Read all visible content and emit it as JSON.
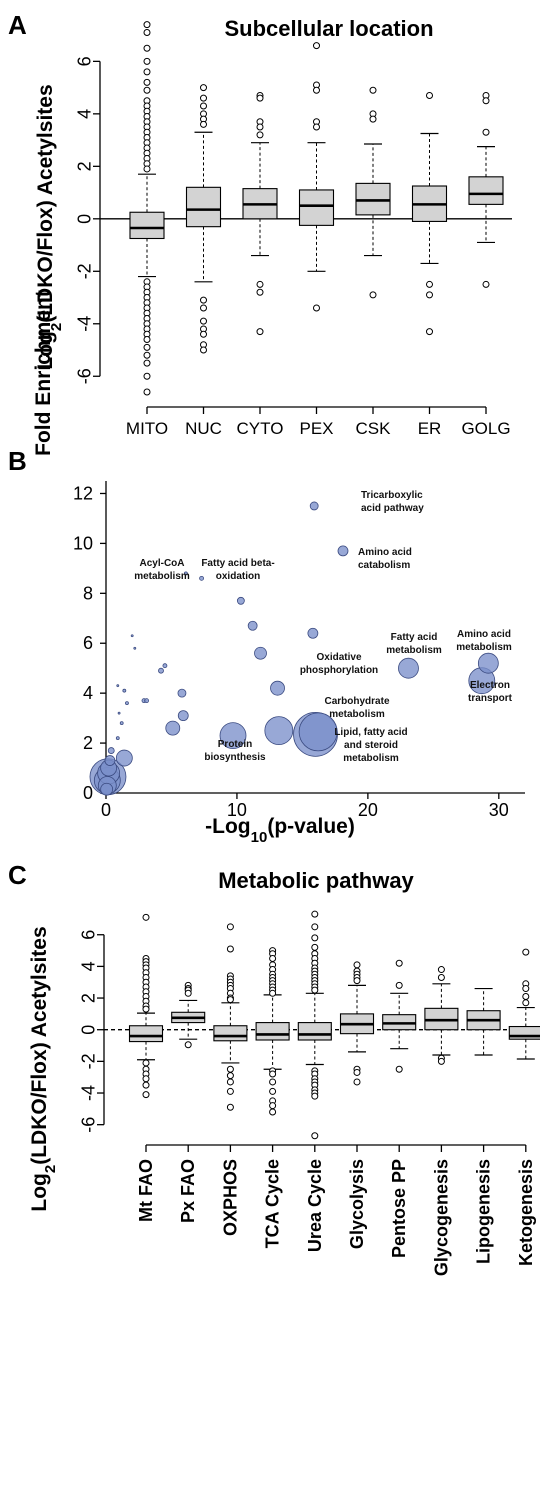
{
  "panels": {
    "a": {
      "letter": "A"
    },
    "b": {
      "letter": "B"
    },
    "c": {
      "letter": "C"
    }
  },
  "chart_data": [
    {
      "type": "box",
      "title": "Subcellular location",
      "xlabel": "",
      "ylabel": "Log2(LDKO/Flox) Acetylsites",
      "ylabel_parts": [
        "Log",
        "2",
        "(LDKO/Flox) Acetylsites"
      ],
      "ylim": [
        -7,
        7.5
      ],
      "yticks": [
        -6,
        -4,
        -2,
        0,
        2,
        4,
        6
      ],
      "reference_line": 0,
      "categories": [
        "MITO",
        "NUC",
        "CYTO",
        "PEX",
        "CSK",
        "ER",
        "GOLG"
      ],
      "boxes": [
        {
          "category": "MITO",
          "whisker_low": -2.2,
          "q1": -0.75,
          "median": -0.35,
          "q3": 0.25,
          "whisker_high": 1.7,
          "outliers": [
            7.4,
            7.1,
            6.5,
            6.0,
            5.6,
            5.2,
            4.9,
            4.5,
            4.3,
            4.1,
            3.9,
            3.7,
            3.5,
            3.3,
            3.1,
            2.9,
            2.7,
            2.5,
            2.3,
            2.1,
            1.9,
            -2.4,
            -2.6,
            -2.8,
            -3.0,
            -3.2,
            -3.4,
            -3.6,
            -3.8,
            -4.0,
            -4.2,
            -4.4,
            -4.6,
            -4.9,
            -5.2,
            -5.5,
            -6.0,
            -6.6
          ]
        },
        {
          "category": "NUC",
          "whisker_low": -2.4,
          "q1": -0.3,
          "median": 0.35,
          "q3": 1.2,
          "whisker_high": 3.3,
          "outliers": [
            5.0,
            4.6,
            4.3,
            4.0,
            3.8,
            3.6,
            -3.1,
            -3.4,
            -3.9,
            -4.2,
            -4.4,
            -4.8,
            -5.0
          ]
        },
        {
          "category": "CYTO",
          "whisker_low": -1.4,
          "q1": 0.0,
          "median": 0.55,
          "q3": 1.15,
          "whisker_high": 2.9,
          "outliers": [
            4.7,
            4.6,
            3.7,
            3.5,
            3.2,
            -2.5,
            -2.8,
            -4.3
          ]
        },
        {
          "category": "PEX",
          "whisker_low": -2.0,
          "q1": -0.25,
          "median": 0.5,
          "q3": 1.1,
          "whisker_high": 2.9,
          "outliers": [
            6.6,
            5.1,
            4.9,
            3.7,
            3.5,
            -3.4
          ]
        },
        {
          "category": "CSK",
          "whisker_low": -1.4,
          "q1": 0.15,
          "median": 0.7,
          "q3": 1.35,
          "whisker_high": 2.85,
          "outliers": [
            4.9,
            4.0,
            3.8,
            -2.9
          ]
        },
        {
          "category": "ER",
          "whisker_low": -1.7,
          "q1": -0.1,
          "median": 0.55,
          "q3": 1.25,
          "whisker_high": 3.25,
          "outliers": [
            4.7,
            -2.5,
            -2.9,
            -4.3
          ]
        },
        {
          "category": "GOLG",
          "whisker_low": -0.9,
          "q1": 0.55,
          "median": 0.95,
          "q3": 1.6,
          "whisker_high": 2.75,
          "outliers": [
            4.7,
            4.5,
            3.3,
            -2.5
          ]
        }
      ]
    },
    {
      "type": "bubble",
      "title": "",
      "xlabel": "-Log10(p-value)",
      "xlabel_parts": [
        "-Log",
        "10",
        "(p-value)"
      ],
      "ylabel": "Fold Enrichment",
      "xlim": [
        0,
        32
      ],
      "ylim": [
        0,
        12.5
      ],
      "xticks": [
        0,
        10,
        20,
        30
      ],
      "yticks": [
        0,
        2,
        4,
        6,
        8,
        10,
        12
      ],
      "colors": {
        "fill": "#7b8fcb",
        "stroke": "#3a4a80"
      },
      "points": [
        {
          "x": 15.9,
          "y": 11.5,
          "size": 4,
          "label": [
            "Tricarboxylic",
            "acid pathway"
          ]
        },
        {
          "x": 18.1,
          "y": 9.7,
          "size": 5,
          "label": [
            "Amino acid",
            "catabolism"
          ]
        },
        {
          "x": 6.1,
          "y": 8.8,
          "size": 1.5,
          "label": [
            "Acyl-CoA",
            "metabolism"
          ]
        },
        {
          "x": 7.3,
          "y": 8.6,
          "size": 2,
          "label": [
            "Fatty acid beta-",
            "oxidation"
          ]
        },
        {
          "x": 10.3,
          "y": 7.7,
          "size": 3.5
        },
        {
          "x": 11.2,
          "y": 6.7,
          "size": 4.5
        },
        {
          "x": 15.8,
          "y": 6.4,
          "size": 5,
          "label": [
            "Oxidative",
            "phosphorylation"
          ]
        },
        {
          "x": 11.8,
          "y": 5.6,
          "size": 6
        },
        {
          "x": 13.1,
          "y": 4.2,
          "size": 7
        },
        {
          "x": 23.1,
          "y": 5.0,
          "size": 10,
          "label": [
            "Fatty acid",
            "metabolism"
          ]
        },
        {
          "x": 29.2,
          "y": 5.2,
          "size": 10,
          "label": [
            "Amino acid",
            "metabolism"
          ]
        },
        {
          "x": 28.7,
          "y": 4.5,
          "size": 13,
          "label": [
            "Electron",
            "transport"
          ]
        },
        {
          "x": 13.2,
          "y": 2.5,
          "size": 14
        },
        {
          "x": 16.2,
          "y": 2.45,
          "size": 19,
          "label": [
            "Carbohydrate",
            "metabolism"
          ]
        },
        {
          "x": 16.0,
          "y": 2.35,
          "size": 22,
          "label": [
            "Lipid, fatty acid",
            "and steroid",
            "metabolism"
          ]
        },
        {
          "x": 9.7,
          "y": 2.3,
          "size": 13,
          "label": [
            "Protein",
            "biosynthesis"
          ]
        },
        {
          "x": 5.1,
          "y": 2.6,
          "size": 7
        },
        {
          "x": 5.9,
          "y": 3.1,
          "size": 5
        },
        {
          "x": 5.8,
          "y": 4.0,
          "size": 4
        },
        {
          "x": 4.2,
          "y": 4.9,
          "size": 2.5
        },
        {
          "x": 4.5,
          "y": 5.1,
          "size": 2
        },
        {
          "x": 2.0,
          "y": 6.3,
          "size": 1
        },
        {
          "x": 2.2,
          "y": 5.8,
          "size": 1
        },
        {
          "x": 0.9,
          "y": 4.3,
          "size": 1
        },
        {
          "x": 1.4,
          "y": 4.1,
          "size": 1.5
        },
        {
          "x": 1.6,
          "y": 3.6,
          "size": 1.5
        },
        {
          "x": 2.9,
          "y": 3.7,
          "size": 2
        },
        {
          "x": 3.1,
          "y": 3.7,
          "size": 2
        },
        {
          "x": 1.0,
          "y": 3.2,
          "size": 1
        },
        {
          "x": 1.2,
          "y": 2.8,
          "size": 1.5
        },
        {
          "x": 0.9,
          "y": 2.2,
          "size": 1.5
        },
        {
          "x": 1.4,
          "y": 1.4,
          "size": 8
        },
        {
          "x": 0.4,
          "y": 1.7,
          "size": 3
        },
        {
          "x": 0.3,
          "y": 1.3,
          "size": 5
        },
        {
          "x": 0.2,
          "y": 1.0,
          "size": 8
        },
        {
          "x": 0.2,
          "y": 0.8,
          "size": 11
        },
        {
          "x": 0.15,
          "y": 0.65,
          "size": 18
        },
        {
          "x": 0.1,
          "y": 0.5,
          "size": 13
        },
        {
          "x": 0.1,
          "y": 0.3,
          "size": 9
        },
        {
          "x": 0.05,
          "y": 0.15,
          "size": 6
        }
      ]
    },
    {
      "type": "box",
      "title": "Metabolic pathway",
      "xlabel": "",
      "ylabel": "Log2(LDKO/Flox) Acetylsites",
      "ylabel_parts": [
        "Log",
        "2",
        "(LDKO/Flox) Acetylsites"
      ],
      "ylim": [
        -7,
        7.5
      ],
      "yticks": [
        -6,
        -4,
        -2,
        0,
        2,
        4,
        6
      ],
      "reference_line": 0,
      "reference_line_style": "dashed",
      "categories": [
        "Mt FAO",
        "Px FAO",
        "OXPHOS",
        "TCA Cycle",
        "Urea Cycle",
        "Glycolysis",
        "Pentose PP",
        "Glycogenesis",
        "Lipogenesis",
        "Ketogenesis"
      ],
      "boxes": [
        {
          "category": "Mt FAO",
          "whisker_low": -1.9,
          "q1": -0.75,
          "median": -0.4,
          "q3": 0.25,
          "whisker_high": 1.05,
          "outliers": [
            7.1,
            4.5,
            4.3,
            4.1,
            3.9,
            3.6,
            3.3,
            3.0,
            2.7,
            2.4,
            2.1,
            1.8,
            1.5,
            1.3,
            -2.1,
            -2.5,
            -2.8,
            -3.1,
            -3.5,
            -4.1
          ]
        },
        {
          "category": "Px FAO",
          "whisker_low": -0.6,
          "q1": 0.45,
          "median": 0.75,
          "q3": 1.1,
          "whisker_high": 1.85,
          "outliers": [
            2.8,
            2.6,
            2.5,
            2.3,
            -0.95
          ]
        },
        {
          "category": "OXPHOS",
          "whisker_low": -2.1,
          "q1": -0.7,
          "median": -0.4,
          "q3": 0.25,
          "whisker_high": 1.7,
          "outliers": [
            6.5,
            5.1,
            3.4,
            3.2,
            3.0,
            2.8,
            2.6,
            2.3,
            2.0,
            1.9,
            -2.5,
            -2.9,
            -3.3,
            -3.9,
            -4.9
          ]
        },
        {
          "category": "TCA Cycle",
          "whisker_low": -2.5,
          "q1": -0.65,
          "median": -0.3,
          "q3": 0.45,
          "whisker_high": 2.2,
          "outliers": [
            5.0,
            4.8,
            4.5,
            4.1,
            3.8,
            3.5,
            3.3,
            3.1,
            2.9,
            2.7,
            2.5,
            2.3,
            -2.6,
            -2.8,
            -3.3,
            -3.9,
            -4.5,
            -4.8,
            -5.2
          ]
        },
        {
          "category": "Urea Cycle",
          "whisker_low": -2.2,
          "q1": -0.65,
          "median": -0.3,
          "q3": 0.45,
          "whisker_high": 2.3,
          "outliers": [
            7.3,
            6.5,
            5.8,
            5.2,
            4.8,
            4.5,
            4.2,
            3.9,
            3.7,
            3.5,
            3.3,
            3.1,
            2.9,
            2.7,
            2.5,
            -2.6,
            -2.8,
            -3.1,
            -3.3,
            -3.5,
            -3.8,
            -4.0,
            -4.2,
            -6.7
          ]
        },
        {
          "category": "Glycolysis",
          "whisker_low": -1.4,
          "q1": -0.25,
          "median": 0.35,
          "q3": 1.0,
          "whisker_high": 2.8,
          "outliers": [
            4.1,
            3.7,
            3.5,
            3.3,
            3.1,
            -2.5,
            -2.7,
            -3.3
          ]
        },
        {
          "category": "Pentose PP",
          "whisker_low": -1.2,
          "q1": 0.0,
          "median": 0.4,
          "q3": 0.95,
          "whisker_high": 2.3,
          "outliers": [
            4.2,
            2.8,
            -2.5
          ]
        },
        {
          "category": "Glycogenesis",
          "whisker_low": -1.6,
          "q1": 0.0,
          "median": 0.6,
          "q3": 1.35,
          "whisker_high": 2.9,
          "outliers": [
            3.8,
            3.3,
            -1.8,
            -2.0
          ]
        },
        {
          "category": "Lipogenesis",
          "whisker_low": -1.6,
          "q1": 0.0,
          "median": 0.6,
          "q3": 1.2,
          "whisker_high": 2.6,
          "outliers": []
        },
        {
          "category": "Ketogenesis",
          "whisker_low": -1.85,
          "q1": -0.6,
          "median": -0.4,
          "q3": 0.2,
          "whisker_high": 1.4,
          "outliers": [
            4.9,
            2.9,
            2.6,
            2.1,
            1.7
          ]
        }
      ]
    }
  ]
}
